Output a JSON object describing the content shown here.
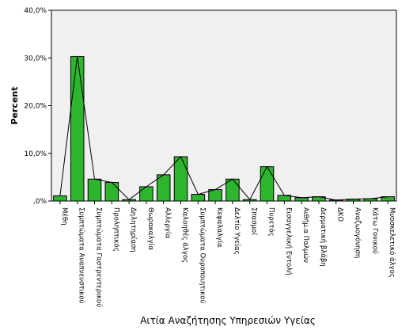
{
  "chart_data": {
    "type": "bar",
    "title": "",
    "xlabel": "Αιτία Αναζήτησης Υπηρεσιών Υγείας",
    "ylabel": "Percent",
    "ylim": [
      0,
      40
    ],
    "yticks": [
      {
        "value": 0,
        "label": ",0%"
      },
      {
        "value": 10,
        "label": "10,0%"
      },
      {
        "value": 20,
        "label": "20,0%"
      },
      {
        "value": 30,
        "label": "30,0%"
      },
      {
        "value": 40,
        "label": "40,0%"
      }
    ],
    "categories": [
      "Μέθη",
      "Συμπτώματα Αναπνευστικού",
      "Συμπτώματα Γαστρεντερικού",
      "Προληπτικός",
      "Δηλητηρίαση",
      "Θωρακαλγία",
      "Αλλεργία",
      "Καλοηθές άλγος",
      "Συμπτώματα Ουροποιητικού",
      "Κεφαλαλγία",
      "Δελτίο Υγείας",
      "Σπασμοί",
      "Πυρετός",
      "Εισαγγελική Εντολή",
      "Αιθήμ.α Παλμών",
      "Δερματική βλάβη",
      "ΔΚΟ",
      "Αναζωογόνηση",
      "Κάτω Γονικού",
      "Μυοσκελετικό άλγος"
    ],
    "values": [
      1.1,
      30.3,
      4.6,
      3.9,
      0.3,
      3.0,
      5.5,
      9.3,
      1.4,
      2.4,
      4.6,
      0.3,
      7.2,
      1.2,
      0.7,
      0.9,
      0.2,
      0.4,
      0.5,
      0.9
    ],
    "bar_color": "#2db52d",
    "bar_stroke": "#000000",
    "line_color": "#000000",
    "plot_background": "#f0f0f0",
    "overlay_line": true,
    "grid": false,
    "legend": "none"
  }
}
